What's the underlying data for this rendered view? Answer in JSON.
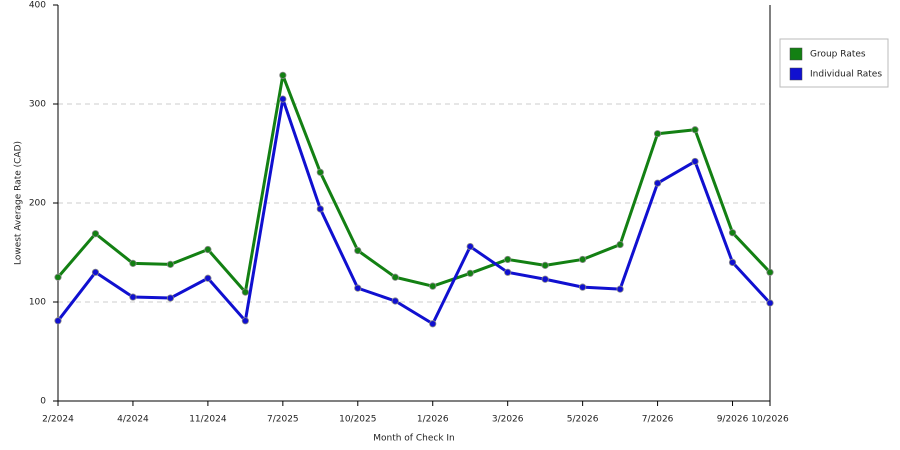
{
  "chart_data": {
    "type": "line",
    "x_label": "Month of Check In",
    "y_label": "Lowest Average Rate (CAD)",
    "categories": [
      "2/2024",
      null,
      "4/2024",
      null,
      "11/2024",
      null,
      "7/2025",
      null,
      "10/2025",
      null,
      "1/2026",
      null,
      "3/2026",
      null,
      "5/2026",
      null,
      "7/2026",
      null,
      "9/2026",
      "10/2026"
    ],
    "series": [
      {
        "name": "Group Rates",
        "color": "#138013",
        "values": [
          125,
          169,
          139,
          138,
          153,
          110,
          329,
          231,
          152,
          125,
          116,
          129,
          143,
          137,
          143,
          158,
          270,
          274,
          170,
          130
        ]
      },
      {
        "name": "Individual Rates",
        "color": "#1010d0",
        "values": [
          81,
          130,
          105,
          104,
          124,
          81,
          305,
          194,
          114,
          101,
          78,
          156,
          130,
          123,
          115,
          113,
          220,
          242,
          140,
          99
        ]
      }
    ],
    "ylim": [
      0,
      400
    ],
    "yticks": [
      0,
      100,
      200,
      300,
      400
    ],
    "grid": true,
    "legend": "right"
  }
}
